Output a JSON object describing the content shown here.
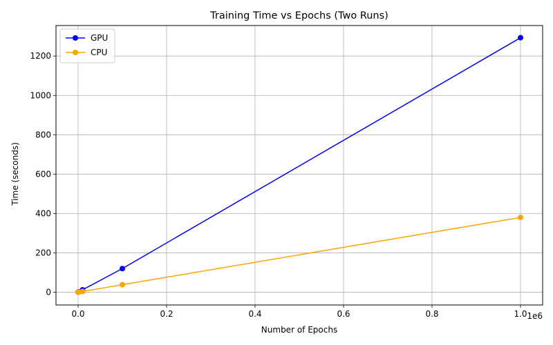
{
  "chart_data": {
    "type": "line",
    "title": "Training Time vs Epochs (Two Runs)",
    "xlabel": "Number of Epochs",
    "ylabel": "Time (seconds)",
    "x_offset_label": "1e6",
    "xlim": [
      -50000,
      1050000
    ],
    "ylim": [
      -65,
      1355
    ],
    "x_ticks": [
      0,
      200000,
      400000,
      600000,
      800000,
      1000000
    ],
    "x_tick_labels": [
      "0.0",
      "0.2",
      "0.4",
      "0.6",
      "0.8",
      "1.0"
    ],
    "y_ticks": [
      0,
      200,
      400,
      600,
      800,
      1000,
      1200
    ],
    "y_tick_labels": [
      "0",
      "200",
      "400",
      "600",
      "800",
      "1000",
      "1200"
    ],
    "grid": true,
    "legend_position": "top-left",
    "series": [
      {
        "name": "GPU",
        "color": "#0000ff",
        "marker": "circle",
        "points": [
          [
            10,
            0.1
          ],
          [
            100,
            0.3
          ],
          [
            1000,
            1.5
          ],
          [
            10000,
            12
          ],
          [
            100000,
            120
          ],
          [
            1000000,
            1293
          ]
        ]
      },
      {
        "name": "CPU",
        "color": "#ffa500",
        "marker": "circle",
        "points": [
          [
            10,
            0.02
          ],
          [
            100,
            0.05
          ],
          [
            1000,
            0.4
          ],
          [
            10000,
            3.8
          ],
          [
            100000,
            38
          ],
          [
            1000000,
            380
          ]
        ]
      }
    ]
  }
}
